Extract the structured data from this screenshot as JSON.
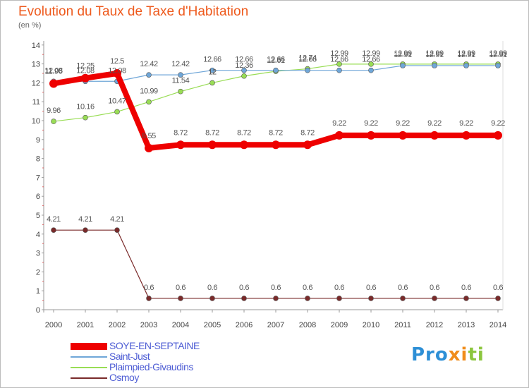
{
  "header": {
    "title": "Evolution du Taux de Taxe d'Habitation",
    "subtitle": "(en %)"
  },
  "logo": {
    "text": "Proxiti",
    "colors": [
      "#2d8fd6",
      "#f08c1a",
      "#8cc63e"
    ]
  },
  "chart_data": {
    "type": "line",
    "title": "Evolution du Taux de Taxe d'Habitation",
    "ylabel": "(en %)",
    "xlabel": "",
    "x": [
      "2000",
      "2001",
      "2002",
      "2003",
      "2004",
      "2005",
      "2006",
      "2007",
      "2008",
      "2009",
      "2010",
      "2011",
      "2012",
      "2013",
      "2014"
    ],
    "yticks": [
      "0",
      "1",
      "2",
      "3",
      "4",
      "5",
      "6",
      "7",
      "8",
      "9",
      "10",
      "11",
      "12",
      "13",
      "14"
    ],
    "ylim": [
      0,
      14
    ],
    "grid": false,
    "legend_position": "bottom-left",
    "series": [
      {
        "name": "SOYE-EN-SEPTAINE",
        "color": "#ee0000",
        "values": [
          11.96,
          12.25,
          12.5,
          8.55,
          8.72,
          8.72,
          8.72,
          8.72,
          8.72,
          9.22,
          9.22,
          9.22,
          9.22,
          9.22,
          9.22
        ],
        "labels": [
          "11.96",
          "12.25",
          "12.5",
          "8.55",
          "8.72",
          "8.72",
          "8.72",
          "8.72",
          "8.72",
          "9.22",
          "9.22",
          "9.22",
          "9.22",
          "9.22",
          "9.22"
        ]
      },
      {
        "name": "Saint-Just",
        "color": "#6fa6d8",
        "values": [
          12.08,
          12.08,
          12.08,
          12.42,
          12.42,
          12.66,
          12.66,
          12.66,
          12.66,
          12.66,
          12.66,
          12.91,
          12.91,
          12.91,
          12.91
        ],
        "labels": [
          "12.08",
          "12.08",
          "12.08",
          "12.42",
          "12.42",
          "12.66",
          "12.66",
          "12.66",
          "12.66",
          "12.66",
          "12.66",
          "12.91",
          "12.91",
          "12.91",
          "12.91"
        ]
      },
      {
        "name": "Plaimpied-Givaudins",
        "color": "#99dd55",
        "values": [
          9.96,
          10.16,
          10.47,
          10.99,
          11.54,
          12,
          12.36,
          12.61,
          12.74,
          12.99,
          12.99,
          12.99,
          12.99,
          12.99,
          12.99
        ],
        "labels": [
          "9.96",
          "10.16",
          "10.47",
          "10.99",
          "11.54",
          "12",
          "12.36",
          "12.61",
          "12.74",
          "12.99",
          "12.99",
          "12.99",
          "12.99",
          "12.99",
          "12.99"
        ]
      },
      {
        "name": "Osmoy",
        "color": "#7a2a2a",
        "values": [
          4.21,
          4.21,
          4.21,
          0.6,
          0.6,
          0.6,
          0.6,
          0.6,
          0.6,
          0.6,
          0.6,
          0.6,
          0.6,
          0.6,
          0.6
        ],
        "labels": [
          "4.21",
          "4.21",
          "4.21",
          "0.6",
          "0.6",
          "0.6",
          "0.6",
          "0.6",
          "0.6",
          "0.6",
          "0.6",
          "0.6",
          "0.6",
          "0.6",
          "0.6"
        ]
      }
    ]
  }
}
